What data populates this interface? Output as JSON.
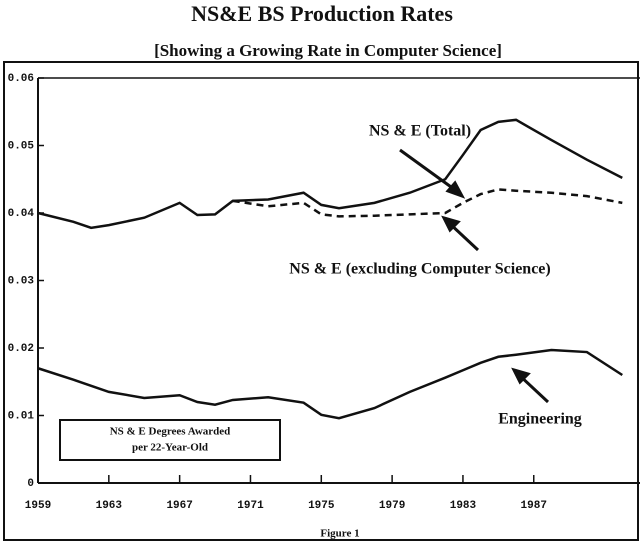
{
  "chart_data": {
    "type": "line",
    "title": "NS&E BS Production Rates",
    "subtitle": "[Showing a Growing Rate in Computer Science]",
    "caption": "Figure 1",
    "note_box": [
      "NS & E Degrees Awarded",
      "per 22-Year-Old"
    ],
    "x": [
      1959,
      1961,
      1962,
      1963,
      1965,
      1967,
      1968,
      1969,
      1970,
      1972,
      1974,
      1975,
      1976,
      1978,
      1980,
      1982,
      1983,
      1984,
      1985,
      1986,
      1988,
      1990,
      1992
    ],
    "series": [
      {
        "name": "NS & E (Total)",
        "color": "#111111",
        "style": "solid",
        "values": [
          0.04,
          0.0387,
          0.0378,
          0.0382,
          0.0393,
          0.0415,
          0.0397,
          0.0398,
          0.0418,
          0.042,
          0.043,
          0.0412,
          0.0407,
          0.0415,
          0.043,
          0.045,
          0.0486,
          0.0523,
          0.0535,
          0.0538,
          0.0508,
          0.0479,
          0.0452
        ]
      },
      {
        "name": "NS & E (excluding Computer Science)",
        "color": "#111111",
        "style": "dashed",
        "values": [
          null,
          null,
          null,
          null,
          null,
          null,
          null,
          null,
          0.0418,
          0.041,
          0.0415,
          0.0398,
          0.0395,
          0.0396,
          0.0398,
          0.04,
          0.0415,
          0.0428,
          0.0435,
          0.0433,
          0.043,
          0.0425,
          0.0415
        ]
      },
      {
        "name": "Engineering",
        "color": "#111111",
        "style": "solid",
        "values": [
          0.017,
          0.0153,
          0.0144,
          0.0135,
          0.0126,
          0.013,
          0.012,
          0.0116,
          0.0123,
          0.0127,
          0.0119,
          0.0101,
          0.0096,
          0.0111,
          0.0135,
          0.0156,
          0.0167,
          0.0178,
          0.0187,
          0.019,
          0.0197,
          0.0194,
          0.016
        ]
      }
    ],
    "xlim": [
      1959,
      1993
    ],
    "xticks": [
      1959,
      1963,
      1967,
      1971,
      1975,
      1979,
      1983,
      1987
    ],
    "ylim": [
      0,
      0.06
    ],
    "yticks": [
      0,
      0.01,
      0.02,
      0.03,
      0.04,
      0.05,
      0.06
    ],
    "grid": false
  }
}
